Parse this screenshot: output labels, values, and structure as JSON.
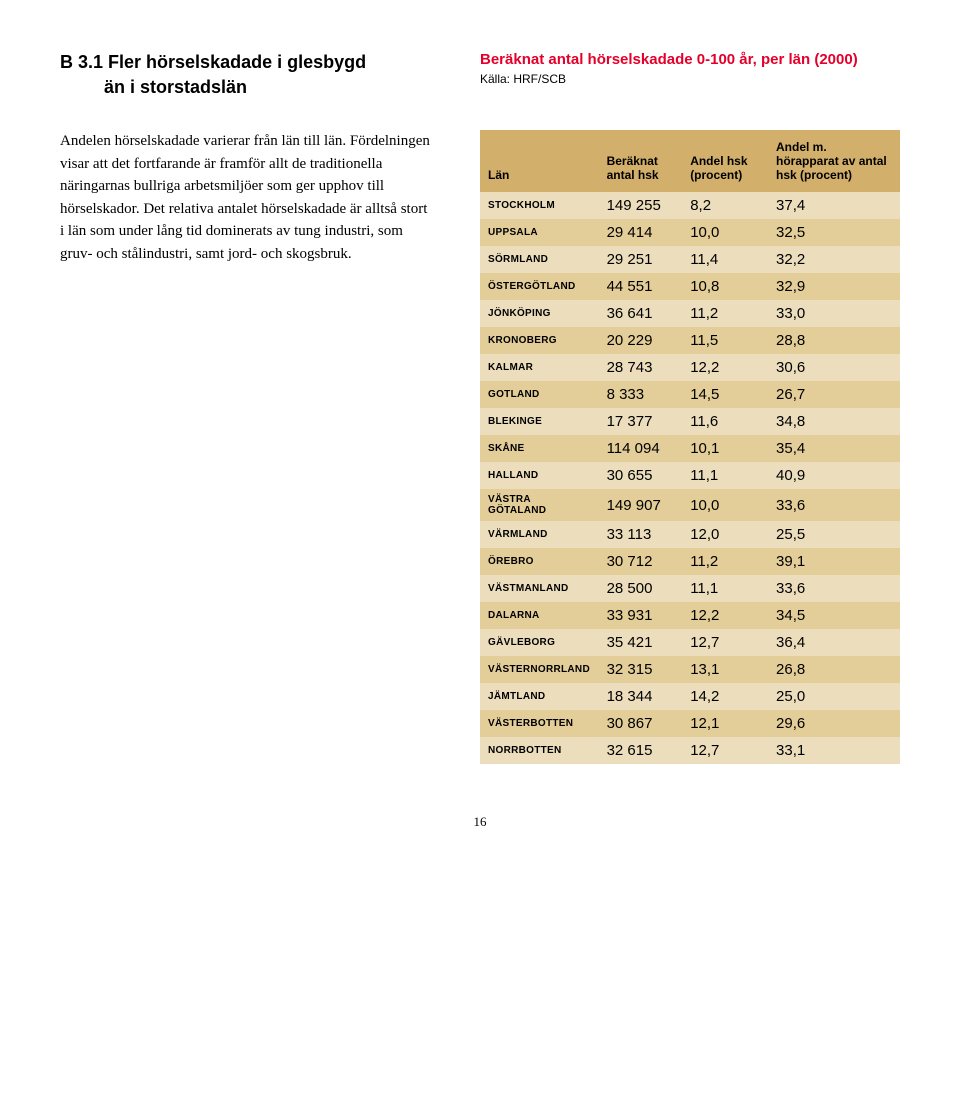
{
  "heading": {
    "line1": "B 3.1 Fler hörselskadade i glesbygd",
    "line2": "än i storstadslän"
  },
  "chart": {
    "title": "Beräknat antal hörselskadade 0-100 år, per län (2000)",
    "source": "Källa: HRF/SCB"
  },
  "bodytext": "Andelen hörselskadade varierar från län till län. Fördelningen visar att det fortfarande är framför allt de traditionella näringarnas bullriga arbetsmiljöer som ger upphov till hörselskador. Det relativa antalet hörselskadade är alltså stort i län som under lång tid dominerats av tung industri, som gruv- och stålindustri, samt jord- och skogsbruk.",
  "table": {
    "headers": {
      "col1": "Län",
      "col2": "Beräknat antal hsk",
      "col3": "Andel hsk (procent)",
      "col4": "Andel m. hörapparat av antal hsk (procent)"
    },
    "rows": [
      {
        "lan": "STOCKHOLM",
        "v1": "149 255",
        "v2": "8,2",
        "v3": "37,4"
      },
      {
        "lan": "UPPSALA",
        "v1": "29 414",
        "v2": "10,0",
        "v3": "32,5"
      },
      {
        "lan": "SÖRMLAND",
        "v1": "29 251",
        "v2": "11,4",
        "v3": "32,2"
      },
      {
        "lan": "ÖSTERGÖTLAND",
        "v1": "44 551",
        "v2": "10,8",
        "v3": "32,9"
      },
      {
        "lan": "JÖNKÖPING",
        "v1": "36 641",
        "v2": "11,2",
        "v3": "33,0"
      },
      {
        "lan": "KRONOBERG",
        "v1": "20 229",
        "v2": "11,5",
        "v3": "28,8"
      },
      {
        "lan": "KALMAR",
        "v1": "28 743",
        "v2": "12,2",
        "v3": "30,6"
      },
      {
        "lan": "GOTLAND",
        "v1": "8 333",
        "v2": "14,5",
        "v3": "26,7"
      },
      {
        "lan": "BLEKINGE",
        "v1": "17 377",
        "v2": "11,6",
        "v3": "34,8"
      },
      {
        "lan": "SKÅNE",
        "v1": "114 094",
        "v2": "10,1",
        "v3": "35,4"
      },
      {
        "lan": "HALLAND",
        "v1": "30 655",
        "v2": "11,1",
        "v3": "40,9"
      },
      {
        "lan": "VÄSTRA GÖTALAND",
        "v1": "149 907",
        "v2": "10,0",
        "v3": "33,6"
      },
      {
        "lan": "VÄRMLAND",
        "v1": "33 113",
        "v2": "12,0",
        "v3": "25,5"
      },
      {
        "lan": "ÖREBRO",
        "v1": "30 712",
        "v2": "11,2",
        "v3": "39,1"
      },
      {
        "lan": "VÄSTMANLAND",
        "v1": "28 500",
        "v2": "11,1",
        "v3": "33,6"
      },
      {
        "lan": "DALARNA",
        "v1": "33 931",
        "v2": "12,2",
        "v3": "34,5"
      },
      {
        "lan": "GÄVLEBORG",
        "v1": "35 421",
        "v2": "12,7",
        "v3": "36,4"
      },
      {
        "lan": "VÄSTERNORRLAND",
        "v1": "32 315",
        "v2": "13,1",
        "v3": "26,8"
      },
      {
        "lan": "JÄMTLAND",
        "v1": "18 344",
        "v2": "14,2",
        "v3": "25,0"
      },
      {
        "lan": "VÄSTERBOTTEN",
        "v1": "30 867",
        "v2": "12,1",
        "v3": "29,6"
      },
      {
        "lan": "NORRBOTTEN",
        "v1": "32 615",
        "v2": "12,7",
        "v3": "33,1"
      }
    ],
    "header_bg": "#d2af6a",
    "row_light_bg": "#ecdebd",
    "row_dark_bg": "#e3cd98"
  },
  "page_number": "16"
}
